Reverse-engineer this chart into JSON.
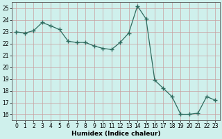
{
  "x": [
    0,
    1,
    2,
    3,
    4,
    5,
    6,
    7,
    8,
    9,
    10,
    11,
    12,
    13,
    14,
    15,
    16,
    17,
    18,
    19,
    20,
    21,
    22,
    23
  ],
  "y": [
    23.0,
    22.9,
    23.1,
    23.8,
    23.5,
    23.2,
    22.2,
    22.1,
    22.1,
    21.8,
    21.6,
    21.5,
    22.1,
    22.9,
    25.2,
    24.1,
    18.9,
    18.2,
    17.5,
    16.0,
    16.0,
    16.1,
    17.5,
    17.2
  ],
  "line_color": "#2e6b5e",
  "marker": "+",
  "marker_size": 4,
  "bg_color": "#cff0ec",
  "grid_color_h": "#c8a0a0",
  "grid_color_v": "#c8a0a0",
  "xlabel": "Humidex (Indice chaleur)",
  "xlim": [
    -0.5,
    23.5
  ],
  "ylim": [
    15.5,
    25.5
  ],
  "yticks": [
    16,
    17,
    18,
    19,
    20,
    21,
    22,
    23,
    24,
    25
  ],
  "xticks": [
    0,
    1,
    2,
    3,
    4,
    5,
    6,
    7,
    8,
    9,
    10,
    11,
    12,
    13,
    14,
    15,
    16,
    17,
    18,
    19,
    20,
    21,
    22,
    23
  ],
  "tick_fontsize": 5.5,
  "xlabel_fontsize": 6.5,
  "line_width": 0.9,
  "marker_lw": 1.0
}
